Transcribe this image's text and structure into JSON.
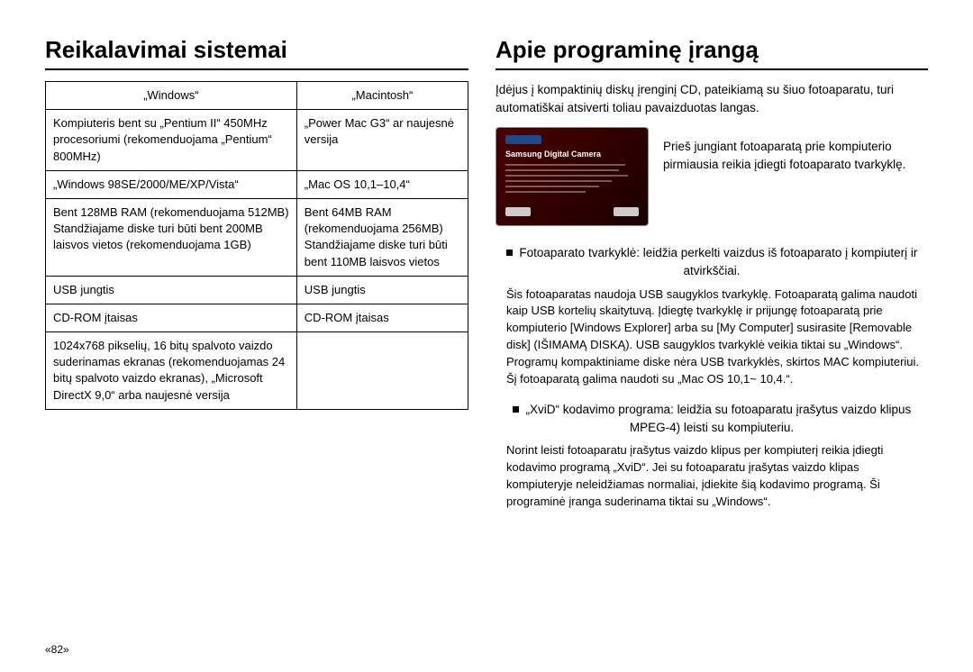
{
  "left": {
    "heading": "Reikalavimai sistemai",
    "table": {
      "headers": [
        "„Windows“",
        "„Macintosh“"
      ],
      "rows": [
        [
          "Kompiuteris bent su „Pentium II“ 450MHz  procesoriumi (rekomenduojama „Pentium“ 800MHz)",
          "„Power Mac G3“ ar naujesnė versija"
        ],
        [
          "„Windows 98SE/2000/ME/XP/Vista“",
          "„Mac OS 10,1–10,4“"
        ],
        [
          "Bent 128MB RAM (rekomenduojama 512MB) Standžiajame diske turi būti bent 200MB laisvos vietos (rekomenduojama 1GB)",
          "Bent 64MB RAM (rekomenduojama 256MB) Standžiajame diske turi būti bent 110MB laisvos vietos"
        ],
        [
          "USB jungtis",
          "USB jungtis"
        ],
        [
          "CD-ROM įtaisas",
          "CD-ROM įtaisas"
        ],
        [
          "1024x768 pikselių, 16 bitų spalvoto vaizdo suderinamas ekranas (rekomenduojamas 24 bitų spalvoto vaizdo ekranas), „Microsoft DirectX 9,0“ arba naujesnė versija",
          ""
        ]
      ]
    }
  },
  "right": {
    "heading": "Apie programinę įrangą",
    "intro": "Įdėjus į kompaktinių diskų įrenginį CD, pateikiamą su šiuo fotoaparatu, turi automatiškai atsiverti toliau pavaizduotas langas.",
    "illus_title": "Samsung Digital Camera",
    "illus_caption": "Prieš jungiant fotoaparatą prie kompiuterio pirmiausia reikia įdiegti fotoaparato tvarkyklę.",
    "bullets": [
      {
        "head": "Fotoaparato tvarkyklė:  leidžia perkelti vaizdus iš fotoaparato į kompiuterį ir atvirkščiai.",
        "body": "Šis fotoaparatas naudoja USB saugyklos tvarkyklę. Fotoaparatą galima naudoti kaip USB kortelių skaitytuvą. Įdiegtę tvarkyklę ir prijungę fotoaparatą prie kompiuterio [Windows Explorer] arba su [My Computer] susirasite [Removable disk] (IŠIMAMĄ DISKĄ). USB saugyklos tvarkyklė veikia tiktai su „Windows“.\nProgramų kompaktiniame diske nėra USB tvarkyklės, skirtos MAC kompiuteriui.\nŠį fotoaparatą galima naudoti su „Mac OS 10,1~ 10,4.“."
      },
      {
        "head": "„XviD“ kodavimo programa: leidžia su fotoaparatu įrašytus vaizdo klipus MPEG-4) leisti su kompiuteriu.",
        "body": "Norint leisti fotoaparatu įrašytus vaizdo klipus per kompiuterį reikia įdiegti kodavimo programą „XviD“. Jei su fotoaparatu įrašytas vaizdo klipas kompiuteryje neleidžiamas normaliai, įdiekite šią kodavimo programą. Ši programinė įranga suderinama tiktai su „Windows“."
      }
    ]
  },
  "page_number": "«82»"
}
